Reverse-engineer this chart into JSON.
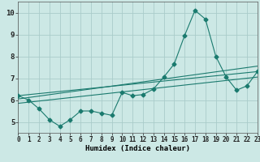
{
  "background_color": "#cce8e5",
  "grid_color": "#aaccca",
  "line_color": "#1a7a6e",
  "xlabel": "Humidex (Indice chaleur)",
  "xlim": [
    0,
    23
  ],
  "ylim": [
    4.5,
    10.5
  ],
  "yticks": [
    5,
    6,
    7,
    8,
    9,
    10
  ],
  "xticks": [
    0,
    1,
    2,
    3,
    4,
    5,
    6,
    7,
    8,
    9,
    10,
    11,
    12,
    13,
    14,
    15,
    16,
    17,
    18,
    19,
    20,
    21,
    22,
    23
  ],
  "series1_x": [
    0,
    1,
    2,
    3,
    4,
    5,
    6,
    7,
    8,
    9,
    10,
    11,
    12,
    13,
    14,
    15,
    16,
    17,
    18,
    19,
    20,
    21,
    22,
    23
  ],
  "series1_y": [
    6.2,
    6.0,
    5.6,
    5.1,
    4.8,
    5.1,
    5.5,
    5.5,
    5.4,
    5.3,
    6.35,
    6.2,
    6.25,
    6.5,
    7.05,
    7.65,
    8.95,
    10.1,
    9.7,
    8.0,
    7.05,
    6.45,
    6.65,
    7.3
  ],
  "series2_x": [
    0,
    23
  ],
  "series2_y": [
    6.2,
    7.3
  ],
  "series3_x": [
    0,
    23
  ],
  "series3_y": [
    6.05,
    7.55
  ],
  "series4_x": [
    0,
    23
  ],
  "series4_y": [
    5.85,
    7.05
  ]
}
